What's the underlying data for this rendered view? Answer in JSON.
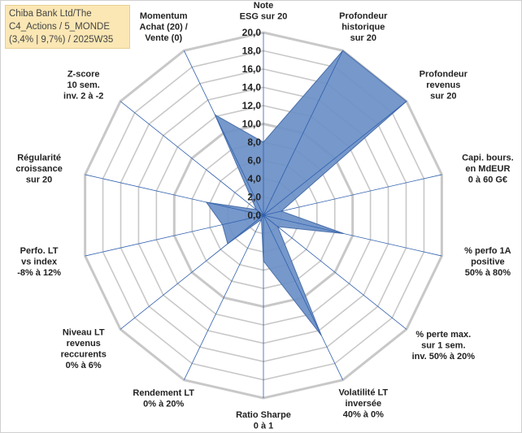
{
  "title_lines": [
    "Chiba Bank Ltd/The",
    "C4_Actions / 5_MONDE",
    "(3,4% | 9,7%) / 2025W35"
  ],
  "chart_data": {
    "type": "radar",
    "rmin": 0,
    "rmax": 20,
    "tick_step": 2,
    "tick_labels": [
      "0,0",
      "2,0",
      "4,0",
      "6,0",
      "8,0",
      "10,0",
      "12,0",
      "14,0",
      "16,0",
      "18,0",
      "20,0"
    ],
    "axes": [
      {
        "label": [
          "Note",
          "ESG sur 20"
        ]
      },
      {
        "label": [
          "Profondeur",
          "historique",
          "sur 20"
        ]
      },
      {
        "label": [
          "Profondeur",
          "revenus",
          "sur 20"
        ]
      },
      {
        "label": [
          "Capi. bours.",
          "en MdEUR",
          "0 à 60 G€"
        ]
      },
      {
        "label": [
          "% perfo 1A",
          "positive",
          "50% à 80%"
        ]
      },
      {
        "label": [
          "% perte max.",
          "sur 1 sem.",
          "inv. 50% à 20%"
        ]
      },
      {
        "label": [
          "Volatilité LT",
          "inversée",
          "40% à 0%"
        ]
      },
      {
        "label": [
          "Ratio Sharpe",
          "0 à 1"
        ]
      },
      {
        "label": [
          "Rendement LT",
          "0% à 20%"
        ]
      },
      {
        "label": [
          "Niveau LT",
          "revenus",
          "reccurents",
          "0% à 6%"
        ]
      },
      {
        "label": [
          "Perfo. LT",
          "vs index",
          "-8% à 12%"
        ]
      },
      {
        "label": [
          "Régularité",
          "croissance",
          "sur 20"
        ]
      },
      {
        "label": [
          "Z-score",
          "10 sem.",
          "inv. 2 à -2"
        ]
      },
      {
        "label": [
          "Momentum",
          "Achat (20) /",
          "Vente (0)"
        ]
      }
    ],
    "values": [
      8.0,
      20.0,
      20.0,
      2.0,
      9.0,
      2.0,
      14.6,
      5.0,
      0.5,
      5.0,
      4.6,
      6.4,
      1.0,
      12.2
    ],
    "colors": {
      "fill": "#6a8fc7",
      "stroke": "#4a6fa8",
      "grid": "#c8c8c8",
      "spoke": "#2f5fae"
    }
  }
}
